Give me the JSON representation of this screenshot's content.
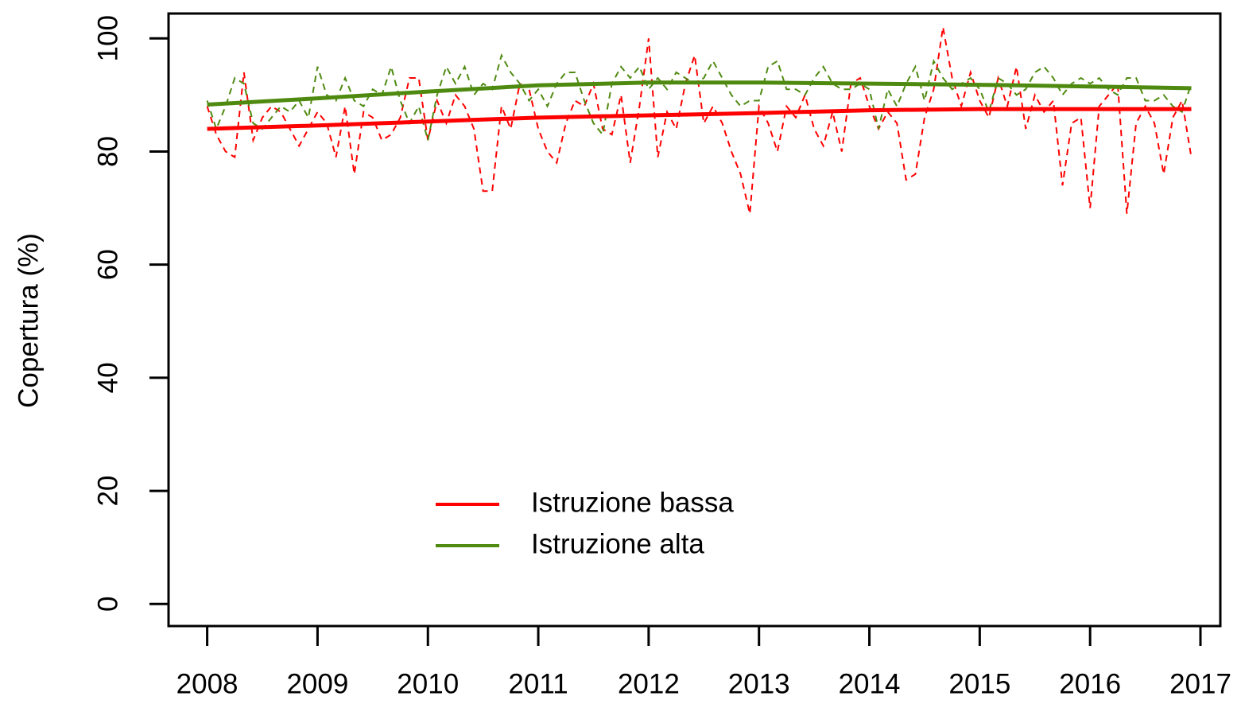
{
  "chart_data": {
    "type": "line",
    "y_label": "Copertura (%)",
    "x": [
      2008,
      2008.083,
      2008.167,
      2008.25,
      2008.333,
      2008.417,
      2008.5,
      2008.583,
      2008.667,
      2008.75,
      2008.833,
      2008.917,
      2009,
      2009.083,
      2009.167,
      2009.25,
      2009.333,
      2009.417,
      2009.5,
      2009.583,
      2009.667,
      2009.75,
      2009.833,
      2009.917,
      2010,
      2010.083,
      2010.167,
      2010.25,
      2010.333,
      2010.417,
      2010.5,
      2010.583,
      2010.667,
      2010.75,
      2010.833,
      2010.917,
      2011,
      2011.083,
      2011.167,
      2011.25,
      2011.333,
      2011.417,
      2011.5,
      2011.583,
      2011.667,
      2011.75,
      2011.833,
      2011.917,
      2012,
      2012.083,
      2012.167,
      2012.25,
      2012.333,
      2012.417,
      2012.5,
      2012.583,
      2012.667,
      2012.75,
      2012.833,
      2012.917,
      2013,
      2013.083,
      2013.167,
      2013.25,
      2013.333,
      2013.417,
      2013.5,
      2013.583,
      2013.667,
      2013.75,
      2013.833,
      2013.917,
      2014,
      2014.083,
      2014.167,
      2014.25,
      2014.333,
      2014.417,
      2014.5,
      2014.583,
      2014.667,
      2014.75,
      2014.833,
      2014.917,
      2015,
      2015.083,
      2015.167,
      2015.25,
      2015.333,
      2015.417,
      2015.5,
      2015.583,
      2015.667,
      2015.75,
      2015.833,
      2015.917,
      2016,
      2016.083,
      2016.167,
      2016.25,
      2016.333,
      2016.417,
      2016.5,
      2016.583,
      2016.667,
      2016.75,
      2016.833,
      2016.917
    ],
    "series": [
      {
        "color": "#ff0000",
        "dashed": true,
        "values": [
          88,
          83,
          80,
          79,
          94,
          82,
          86,
          88,
          87,
          84,
          81,
          84,
          87,
          85,
          79,
          88,
          76,
          87,
          86,
          82,
          83,
          86,
          93,
          93,
          82,
          89,
          85,
          90,
          88,
          84,
          73,
          73,
          88,
          84,
          92,
          91,
          84,
          80,
          78,
          85,
          89,
          88,
          92,
          84,
          83,
          90,
          78,
          88,
          100,
          79,
          87,
          84,
          92,
          97,
          85,
          88,
          85,
          80,
          76,
          69,
          88,
          85,
          80,
          88,
          86,
          90,
          84,
          81,
          87,
          80,
          92,
          93,
          88,
          84,
          87,
          85,
          75,
          76,
          86,
          91,
          102,
          93,
          88,
          94,
          89,
          86,
          93,
          88,
          95,
          84,
          90,
          87,
          89,
          74,
          85,
          86,
          70,
          88,
          90,
          92,
          69,
          85,
          88,
          85,
          76,
          86,
          89,
          79
        ]
      },
      {
        "color": "#4f8a10",
        "dashed": true,
        "values": [
          89,
          84,
          88,
          93,
          92,
          85,
          84,
          86,
          88,
          87,
          89,
          86,
          95,
          90,
          89,
          93,
          89,
          88,
          91,
          90,
          95,
          89,
          85,
          88,
          82,
          90,
          95,
          92,
          95,
          90,
          92,
          91,
          97,
          94,
          92,
          89,
          91,
          88,
          92,
          94,
          94,
          89,
          85,
          83,
          92,
          95,
          93,
          95,
          91,
          93,
          91,
          94,
          93,
          92,
          93,
          96,
          93,
          90,
          88,
          89,
          89,
          95,
          96,
          91,
          91,
          90,
          93,
          95,
          92,
          91,
          91,
          92,
          91,
          84,
          91,
          88,
          92,
          95,
          89,
          96,
          93,
          91,
          92,
          93,
          91,
          87,
          93,
          92,
          90,
          91,
          94,
          95,
          93,
          90,
          92,
          93,
          92,
          93,
          91,
          90,
          93,
          93,
          89,
          89,
          90,
          88,
          87,
          92
        ]
      },
      {
        "name": "Istruzione bassa",
        "color": "#ff0000",
        "x": [
          2008,
          2009,
          2010,
          2011,
          2012,
          2013,
          2014,
          2015,
          2016,
          2016.917
        ],
        "values": [
          84,
          84.6,
          85.3,
          86,
          86.4,
          86.8,
          87.3,
          87.5,
          87.5,
          87.5
        ]
      },
      {
        "name": "Istruzione alta",
        "color": "#4f8a10",
        "x": [
          2008,
          2009,
          2010,
          2011,
          2012,
          2013,
          2014,
          2015,
          2016,
          2016.917
        ],
        "values": [
          88.3,
          89.4,
          90.6,
          91.7,
          92.2,
          92.2,
          92,
          91.8,
          91.5,
          91.2
        ]
      }
    ],
    "xlim": [
      2007.65,
      2017.18
    ],
    "xticks": [
      2008,
      2009,
      2010,
      2011,
      2012,
      2013,
      2014,
      2015,
      2016,
      2017
    ],
    "ylim": [
      -3.9,
      104.4
    ],
    "yticks": [
      0,
      20,
      40,
      60,
      80,
      100
    ]
  }
}
